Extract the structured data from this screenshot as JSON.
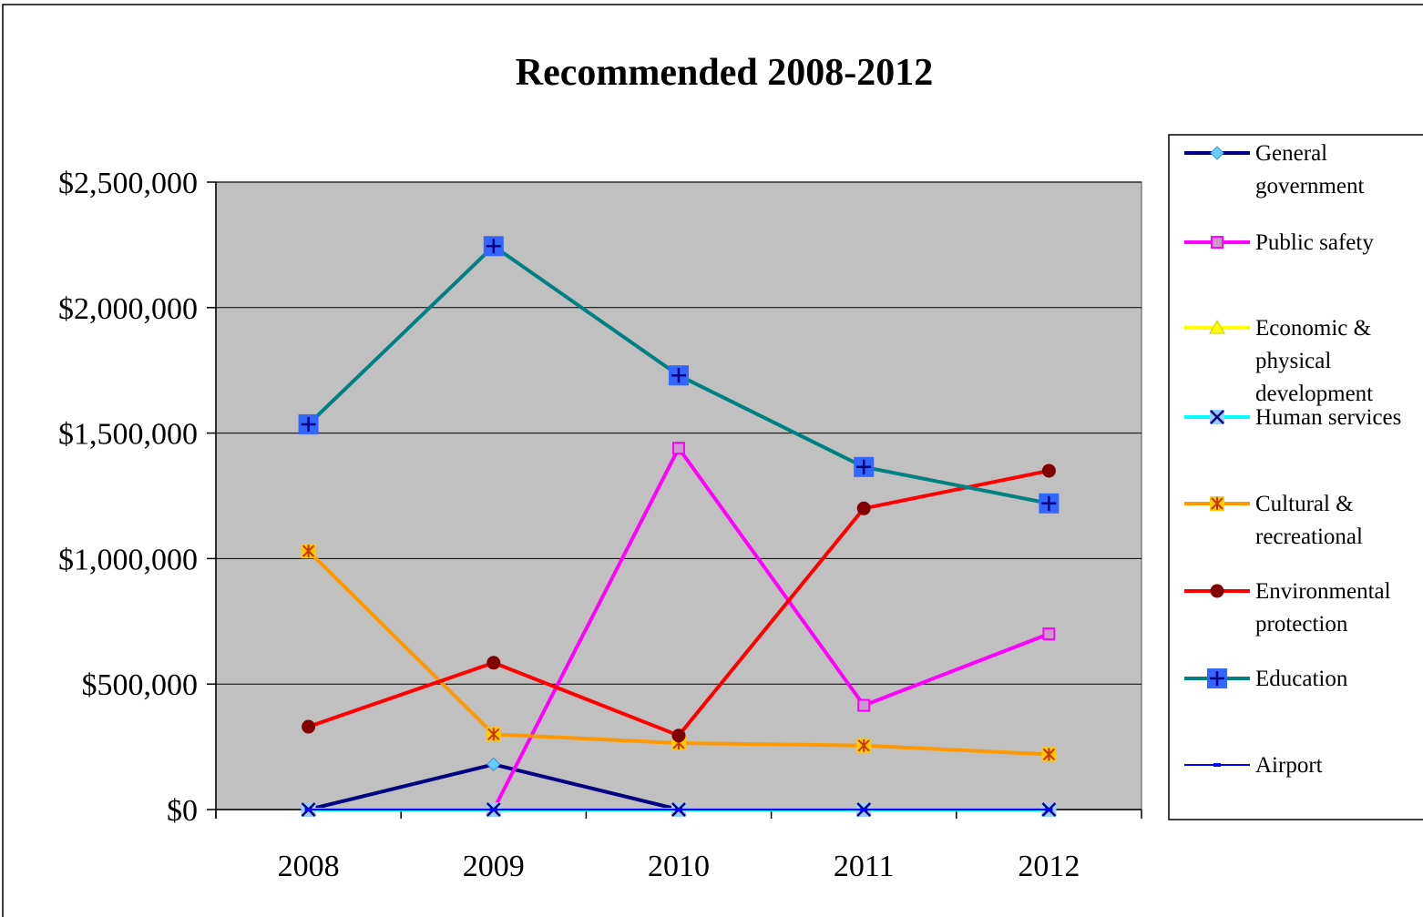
{
  "chart_data": {
    "type": "line",
    "title": "Recommended 2008-2012",
    "xlabel": "",
    "ylabel": "",
    "categories": [
      "2008",
      "2009",
      "2010",
      "2011",
      "2012"
    ],
    "ylim": [
      0,
      2500000
    ],
    "yticks": [
      0,
      500000,
      1000000,
      1500000,
      2000000,
      2500000
    ],
    "ytick_labels": [
      "$0",
      "$500,000",
      "$1,000,000",
      "$1,500,000",
      "$2,000,000",
      "$2,500,000"
    ],
    "grid": true,
    "legend_position": "right",
    "plot_background": "#c0c0c0",
    "series": [
      {
        "name": "General government",
        "legend_lines": [
          "General",
          "government"
        ],
        "color": "#000080",
        "marker": "diamond",
        "marker_fill": "#66ccff",
        "values": [
          0,
          180000,
          0,
          0,
          0
        ]
      },
      {
        "name": "Public safety",
        "legend_lines": [
          "Public safety"
        ],
        "color": "#ff00ff",
        "marker": "square",
        "marker_fill": "#cc99cc",
        "values": [
          0,
          0,
          1440000,
          415000,
          700000
        ]
      },
      {
        "name": "Economic & physical development",
        "legend_lines": [
          "Economic &",
          "physical",
          "development"
        ],
        "color": "#ffff00",
        "marker": "triangle",
        "marker_fill": "#ffff00",
        "values": [
          0,
          0,
          0,
          0,
          0
        ]
      },
      {
        "name": "Human services",
        "legend_lines": [
          "Human services"
        ],
        "color": "#00ffff",
        "marker": "x",
        "marker_fill": "#99ccff",
        "values": [
          0,
          0,
          0,
          0,
          0
        ]
      },
      {
        "name": "Cultural & recreational",
        "legend_lines": [
          "Cultural &",
          "recreational"
        ],
        "color": "#ff9900",
        "marker": "star",
        "marker_fill": "#ffcc00",
        "values": [
          1030000,
          300000,
          265000,
          255000,
          220000
        ]
      },
      {
        "name": "Environmental protection",
        "legend_lines": [
          "Environmental",
          "protection"
        ],
        "color": "#ff0000",
        "marker": "circle",
        "marker_fill": "#800000",
        "values": [
          330000,
          585000,
          295000,
          1200000,
          1350000
        ]
      },
      {
        "name": "Education",
        "legend_lines": [
          "Education"
        ],
        "color": "#008080",
        "marker": "plus",
        "marker_fill": "#3366ff",
        "values": [
          1535000,
          2245000,
          1730000,
          1365000,
          1220000
        ]
      },
      {
        "name": "Airport",
        "legend_lines": [
          "Airport"
        ],
        "color": "#0000ff",
        "marker": "dash",
        "marker_fill": "#0000ff",
        "values": [
          0,
          0,
          0,
          0,
          0
        ]
      }
    ]
  }
}
